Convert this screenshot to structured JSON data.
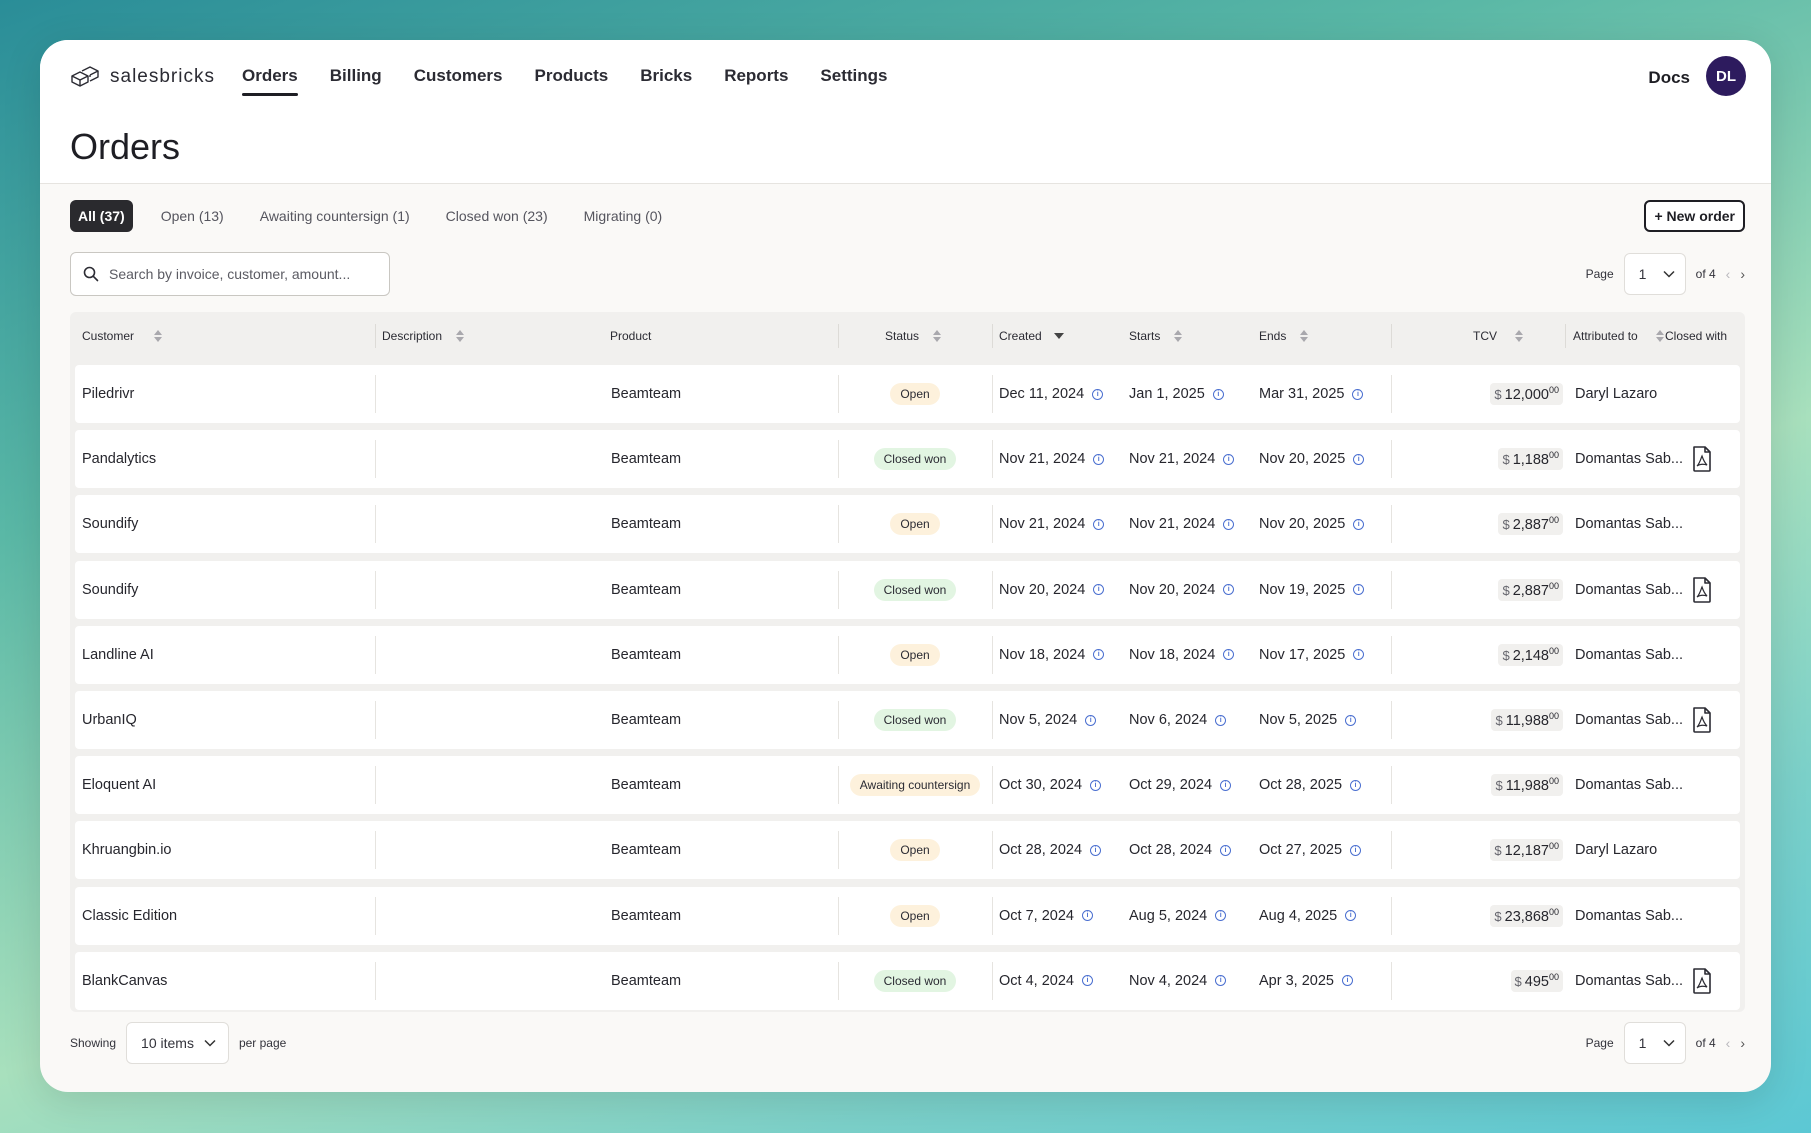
{
  "brand": {
    "name": "salesbricks",
    "logo_icon": "bricks-logo-icon"
  },
  "nav": [
    {
      "label": "Orders",
      "active": true
    },
    {
      "label": "Billing"
    },
    {
      "label": "Customers"
    },
    {
      "label": "Products"
    },
    {
      "label": "Bricks"
    },
    {
      "label": "Reports"
    },
    {
      "label": "Settings"
    }
  ],
  "header": {
    "docs": "Docs",
    "avatar": "DL"
  },
  "page_title": "Orders",
  "tabs": [
    {
      "label": "All (37)",
      "active": true
    },
    {
      "label": "Open (13)"
    },
    {
      "label": "Awaiting countersign (1)"
    },
    {
      "label": "Closed won (23)"
    },
    {
      "label": "Migrating (0)"
    }
  ],
  "new_order": "+ New order",
  "search": {
    "placeholder": "Search by invoice, customer, amount..."
  },
  "pagination": {
    "page_label": "Page",
    "page": "1",
    "of": "of 4"
  },
  "columns": {
    "customer": "Customer",
    "description": "Description",
    "product": "Product",
    "status": "Status",
    "created": "Created",
    "starts": "Starts",
    "ends": "Ends",
    "tcv": "TCV",
    "attributed": "Attributed to",
    "closed_with": "Closed with"
  },
  "rows": [
    {
      "customer": "Piledrivr",
      "product": "Beamteam",
      "status": "Open",
      "created": "Dec 11, 2024",
      "starts": "Jan 1, 2025",
      "ends": "Mar 31, 2025",
      "currency": "$",
      "tcv": "12,000",
      "cents": "00",
      "attributed": "Daryl Lazaro",
      "pdf": false
    },
    {
      "customer": "Pandalytics",
      "product": "Beamteam",
      "status": "Closed won",
      "created": "Nov 21, 2024",
      "starts": "Nov 21, 2024",
      "ends": "Nov 20, 2025",
      "currency": "$",
      "tcv": "1,188",
      "cents": "00",
      "attributed": "Domantas Sab...",
      "pdf": true
    },
    {
      "customer": "Soundify",
      "product": "Beamteam",
      "status": "Open",
      "created": "Nov 21, 2024",
      "starts": "Nov 21, 2024",
      "ends": "Nov 20, 2025",
      "currency": "$",
      "tcv": "2,887",
      "cents": "00",
      "attributed": "Domantas Sab...",
      "pdf": false
    },
    {
      "customer": "Soundify",
      "product": "Beamteam",
      "status": "Closed won",
      "created": "Nov 20, 2024",
      "starts": "Nov 20, 2024",
      "ends": "Nov 19, 2025",
      "currency": "$",
      "tcv": "2,887",
      "cents": "00",
      "attributed": "Domantas Sab...",
      "pdf": true
    },
    {
      "customer": "Landline AI",
      "product": "Beamteam",
      "status": "Open",
      "created": "Nov 18, 2024",
      "starts": "Nov 18, 2024",
      "ends": "Nov 17, 2025",
      "currency": "$",
      "tcv": "2,148",
      "cents": "00",
      "attributed": "Domantas Sab...",
      "pdf": false
    },
    {
      "customer": "UrbanIQ",
      "product": "Beamteam",
      "status": "Closed won",
      "created": "Nov 5, 2024",
      "starts": "Nov 6, 2024",
      "ends": "Nov 5, 2025",
      "currency": "$",
      "tcv": "11,988",
      "cents": "00",
      "attributed": "Domantas Sab...",
      "pdf": true
    },
    {
      "customer": "Eloquent AI",
      "product": "Beamteam",
      "status": "Awaiting countersign",
      "created": "Oct 30, 2024",
      "starts": "Oct 29, 2024",
      "ends": "Oct 28, 2025",
      "currency": "$",
      "tcv": "11,988",
      "cents": "00",
      "attributed": "Domantas Sab...",
      "pdf": false
    },
    {
      "customer": "Khruangbin.io",
      "product": "Beamteam",
      "status": "Open",
      "created": "Oct 28, 2024",
      "starts": "Oct 28, 2024",
      "ends": "Oct 27, 2025",
      "currency": "$",
      "tcv": "12,187",
      "cents": "00",
      "attributed": "Daryl Lazaro",
      "pdf": false
    },
    {
      "customer": "Classic Edition",
      "product": "Beamteam",
      "status": "Open",
      "created": "Oct 7, 2024",
      "starts": "Aug 5, 2024",
      "ends": "Aug 4, 2025",
      "currency": "$",
      "tcv": "23,868",
      "cents": "00",
      "attributed": "Domantas Sab...",
      "pdf": false
    },
    {
      "customer": "BlankCanvas",
      "product": "Beamteam",
      "status": "Closed won",
      "created": "Oct 4, 2024",
      "starts": "Nov 4, 2024",
      "ends": "Apr 3, 2025",
      "currency": "$",
      "tcv": "495",
      "cents": "00",
      "attributed": "Domantas Sab...",
      "pdf": true
    }
  ],
  "footer": {
    "showing": "Showing",
    "items": "10 items",
    "per_page": "per page"
  },
  "colors": {
    "accent_dark": "#2a2a2e",
    "avatar_bg": "#2d1b5e",
    "badge_open": "#fdf1dc",
    "badge_won": "#e2f5e2",
    "info_blue": "#4a6fd0"
  }
}
